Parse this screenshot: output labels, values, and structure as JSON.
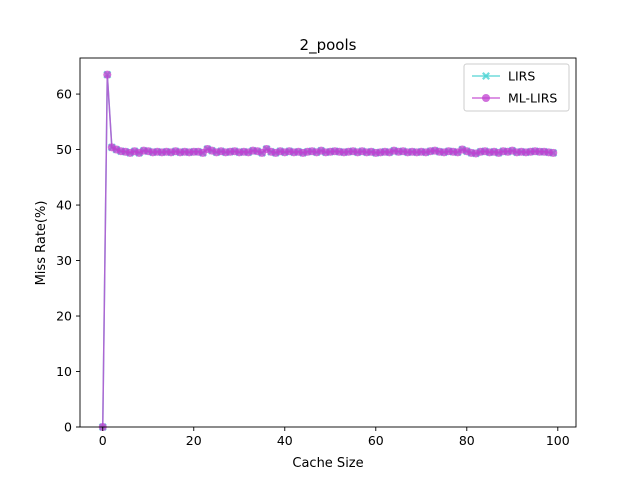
{
  "chart_data": {
    "type": "line",
    "title": "2_pools",
    "xlabel": "Cache Size",
    "ylabel": "Miss Rate(%)",
    "xlim": [
      -5,
      104
    ],
    "ylim": [
      0,
      66.5
    ],
    "xticks": [
      0,
      20,
      40,
      60,
      80,
      100
    ],
    "yticks": [
      0,
      10,
      20,
      30,
      40,
      50,
      60
    ],
    "grid": false,
    "legend_position": "top-right",
    "x": [
      0,
      1,
      2,
      3,
      4,
      5,
      6,
      7,
      8,
      9,
      10,
      11,
      12,
      13,
      14,
      15,
      16,
      17,
      18,
      19,
      20,
      21,
      22,
      23,
      24,
      25,
      26,
      27,
      28,
      29,
      30,
      31,
      32,
      33,
      34,
      35,
      36,
      37,
      38,
      39,
      40,
      41,
      42,
      43,
      44,
      45,
      46,
      47,
      48,
      49,
      50,
      51,
      52,
      53,
      54,
      55,
      56,
      57,
      58,
      59,
      60,
      61,
      62,
      63,
      64,
      65,
      66,
      67,
      68,
      69,
      70,
      71,
      72,
      73,
      74,
      75,
      76,
      77,
      78,
      79,
      80,
      81,
      82,
      83,
      84,
      85,
      86,
      87,
      88,
      89,
      90,
      91,
      92,
      93,
      94,
      95,
      96,
      97,
      98,
      99
    ],
    "series": [
      {
        "name": "LIRS",
        "color": "#40d0d0",
        "marker": "x",
        "values": [
          0,
          63.5,
          50.4,
          50.0,
          49.7,
          49.6,
          49.4,
          49.7,
          49.4,
          49.8,
          49.7,
          49.5,
          49.6,
          49.5,
          49.6,
          49.5,
          49.7,
          49.5,
          49.6,
          49.5,
          49.6,
          49.6,
          49.4,
          50.1,
          49.8,
          49.5,
          49.7,
          49.5,
          49.6,
          49.7,
          49.5,
          49.6,
          49.5,
          49.8,
          49.7,
          49.4,
          50.1,
          49.6,
          49.4,
          49.7,
          49.5,
          49.7,
          49.5,
          49.6,
          49.4,
          49.6,
          49.7,
          49.5,
          49.8,
          49.5,
          49.6,
          49.7,
          49.6,
          49.5,
          49.6,
          49.7,
          49.5,
          49.7,
          49.5,
          49.6,
          49.4,
          49.5,
          49.6,
          49.5,
          49.8,
          49.6,
          49.7,
          49.5,
          49.6,
          49.5,
          49.6,
          49.5,
          49.7,
          49.8,
          49.6,
          49.5,
          49.7,
          49.6,
          49.5,
          50.0,
          49.7,
          49.4,
          49.3,
          49.6,
          49.7,
          49.5,
          49.6,
          49.4,
          49.7,
          49.6,
          49.8,
          49.5,
          49.6,
          49.5,
          49.6,
          49.7,
          49.6,
          49.6,
          49.5,
          49.4
        ]
      },
      {
        "name": "ML-LIRS",
        "color": "#c040d0",
        "marker": "o",
        "values": [
          0,
          63.5,
          50.4,
          50.0,
          49.7,
          49.6,
          49.4,
          49.7,
          49.4,
          49.8,
          49.7,
          49.5,
          49.6,
          49.5,
          49.6,
          49.5,
          49.7,
          49.5,
          49.6,
          49.5,
          49.6,
          49.6,
          49.4,
          50.1,
          49.8,
          49.5,
          49.7,
          49.5,
          49.6,
          49.7,
          49.5,
          49.6,
          49.5,
          49.8,
          49.7,
          49.4,
          50.1,
          49.6,
          49.4,
          49.7,
          49.5,
          49.7,
          49.5,
          49.6,
          49.4,
          49.6,
          49.7,
          49.5,
          49.8,
          49.5,
          49.6,
          49.7,
          49.6,
          49.5,
          49.6,
          49.7,
          49.5,
          49.7,
          49.5,
          49.6,
          49.4,
          49.5,
          49.6,
          49.5,
          49.8,
          49.6,
          49.7,
          49.5,
          49.6,
          49.5,
          49.6,
          49.5,
          49.7,
          49.8,
          49.6,
          49.5,
          49.7,
          49.6,
          49.5,
          50.0,
          49.7,
          49.4,
          49.3,
          49.6,
          49.7,
          49.5,
          49.6,
          49.4,
          49.7,
          49.6,
          49.8,
          49.5,
          49.6,
          49.5,
          49.6,
          49.7,
          49.6,
          49.6,
          49.5,
          49.4
        ]
      }
    ]
  }
}
